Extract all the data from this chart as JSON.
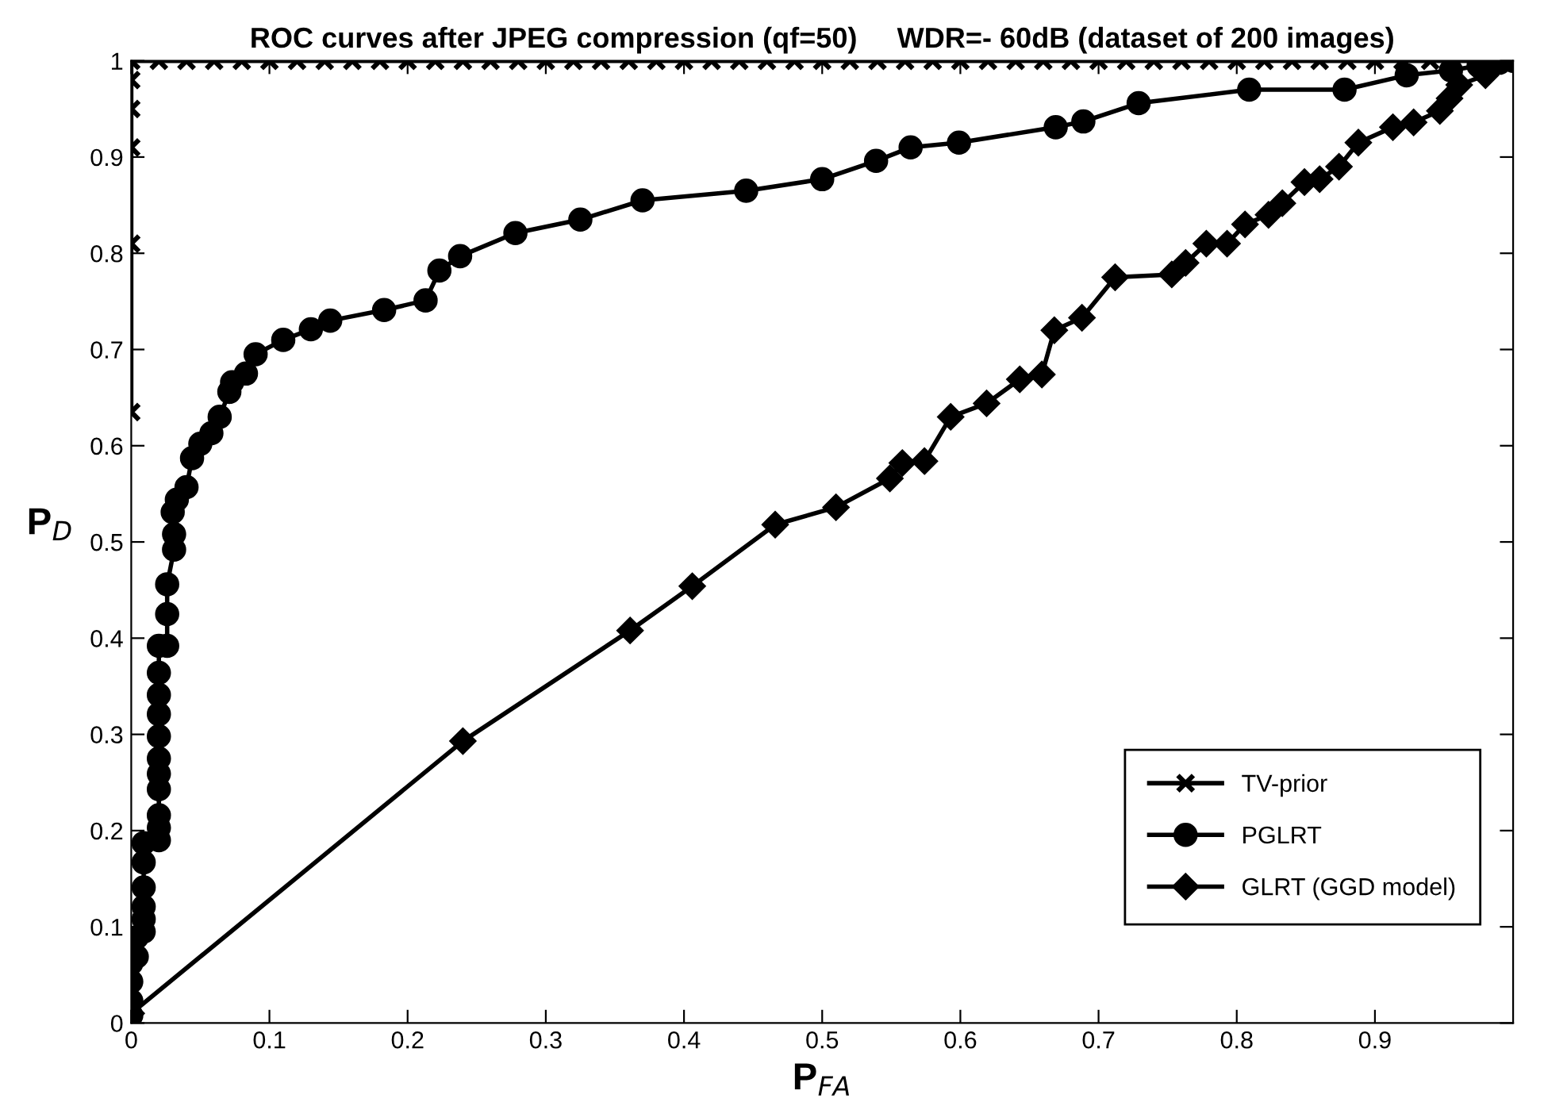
{
  "chart_data": {
    "type": "line",
    "title": "ROC curves after JPEG compression (qf=50)     WDR=- 60dB (dataset of 200 images)",
    "xlabel": "P$_{FA}$",
    "ylabel": "P$_{D}$",
    "xlim": [
      0,
      1
    ],
    "ylim": [
      0,
      1
    ],
    "xticks": [
      0,
      0.1,
      0.2,
      0.3,
      0.4,
      0.5,
      0.6,
      0.7,
      0.8,
      0.9
    ],
    "yticks": [
      0,
      0.1,
      0.2,
      0.3,
      0.4,
      0.5,
      0.6,
      0.7,
      0.8,
      0.9,
      1
    ],
    "grid": false,
    "legend": "bottom right",
    "line_style": "solid",
    "series": [
      {
        "name": "TV-prior",
        "color": "#000000",
        "marker": "cross",
        "x": [
          0,
          0,
          0,
          0,
          0,
          0,
          0.02,
          0.04,
          0.06,
          0.08,
          0.1,
          0.12,
          0.14,
          0.16,
          0.18,
          0.2,
          0.22,
          0.24,
          0.26,
          0.28,
          0.3,
          0.32,
          0.34,
          0.36,
          0.38,
          0.4,
          0.42,
          0.44,
          0.46,
          0.48,
          0.5,
          0.52,
          0.54,
          0.56,
          0.58,
          0.6,
          0.62,
          0.64,
          0.66,
          0.68,
          0.7,
          0.72,
          0.74,
          0.76,
          0.78,
          0.8,
          0.82,
          0.84,
          0.86,
          0.88,
          0.9,
          0.92,
          0.94,
          0.98,
          1
        ],
        "values": [
          0.635,
          0.81,
          0.91,
          0.95,
          0.98,
          1,
          1,
          1,
          1,
          1,
          1,
          1,
          1,
          1,
          1,
          1,
          1,
          1,
          1,
          1,
          1,
          1,
          1,
          1,
          1,
          1,
          1,
          1,
          1,
          1,
          1,
          1,
          1,
          1,
          1,
          1,
          1,
          1,
          1,
          1,
          1,
          1,
          1,
          1,
          1,
          1,
          1,
          1,
          1,
          1,
          1,
          1,
          1,
          1,
          1
        ]
      },
      {
        "name": "PGLRT",
        "color": "#000000",
        "marker": "circle",
        "x": [
          0,
          0,
          0,
          0,
          0.004,
          0.004,
          0.009,
          0.009,
          0.009,
          0.009,
          0.009,
          0.009,
          0.02,
          0.02,
          0.02,
          0.02,
          0.02,
          0.02,
          0.02,
          0.02,
          0.02,
          0.02,
          0.02,
          0.026,
          0.026,
          0.026,
          0.031,
          0.031,
          0.03,
          0.033,
          0.04,
          0.044,
          0.05,
          0.058,
          0.064,
          0.071,
          0.073,
          0.083,
          0.09,
          0.11,
          0.13,
          0.144,
          0.183,
          0.213,
          0.223,
          0.238,
          0.278,
          0.325,
          0.37,
          0.445,
          0.5,
          0.539,
          0.564,
          0.599,
          0.669,
          0.689,
          0.729,
          0.809,
          0.878,
          0.923,
          0.955,
          0.975,
          0.99,
          1
        ],
        "values": [
          0.008,
          0.023,
          0.043,
          0.062,
          0.069,
          0.089,
          0.095,
          0.108,
          0.121,
          0.141,
          0.167,
          0.187,
          0.19,
          0.203,
          0.216,
          0.243,
          0.259,
          0.275,
          0.298,
          0.321,
          0.341,
          0.364,
          0.392,
          0.392,
          0.425,
          0.456,
          0.492,
          0.508,
          0.531,
          0.544,
          0.557,
          0.587,
          0.602,
          0.613,
          0.63,
          0.656,
          0.666,
          0.675,
          0.695,
          0.71,
          0.721,
          0.73,
          0.741,
          0.751,
          0.782,
          0.797,
          0.821,
          0.835,
          0.855,
          0.865,
          0.877,
          0.896,
          0.91,
          0.915,
          0.931,
          0.937,
          0.956,
          0.97,
          0.97,
          0.985,
          0.99,
          0.995,
          0.998,
          1
        ]
      },
      {
        "name": "GLRT (GGD model)",
        "color": "#000000",
        "marker": "diamond",
        "x": [
          0,
          0.24,
          0.361,
          0.406,
          0.466,
          0.51,
          0.549,
          0.558,
          0.574,
          0.593,
          0.619,
          0.643,
          0.659,
          0.668,
          0.688,
          0.712,
          0.753,
          0.763,
          0.778,
          0.793,
          0.806,
          0.823,
          0.833,
          0.849,
          0.86,
          0.874,
          0.888,
          0.913,
          0.928,
          0.947,
          0.954,
          0.961,
          0.98,
          0.989
        ],
        "values": [
          0.01,
          0.293,
          0.408,
          0.454,
          0.518,
          0.536,
          0.566,
          0.582,
          0.584,
          0.63,
          0.644,
          0.669,
          0.674,
          0.72,
          0.733,
          0.775,
          0.778,
          0.79,
          0.81,
          0.81,
          0.83,
          0.84,
          0.852,
          0.874,
          0.877,
          0.89,
          0.915,
          0.931,
          0.936,
          0.948,
          0.961,
          0.975,
          0.985,
          1
        ]
      }
    ]
  }
}
